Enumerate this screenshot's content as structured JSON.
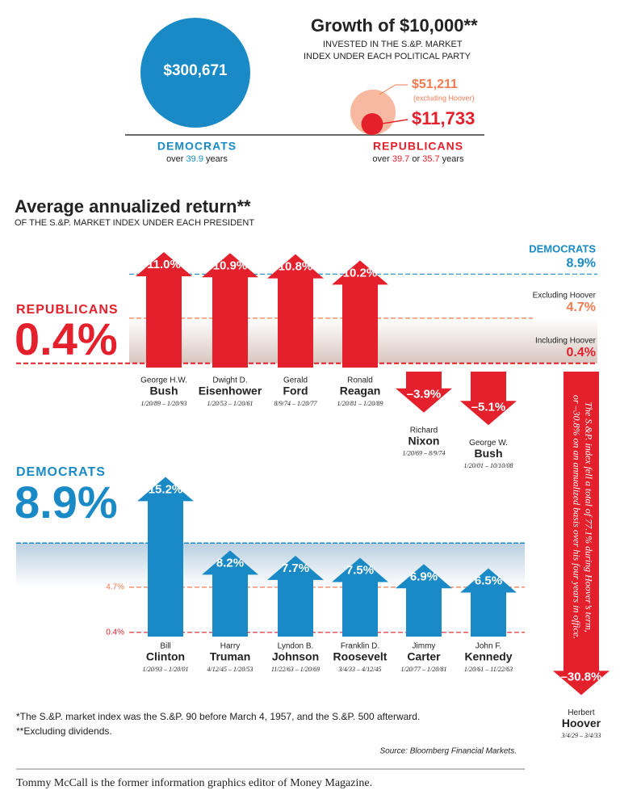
{
  "growth": {
    "title": "Growth of $10,000**",
    "subtitle": [
      "INVESTED IN THE S.&P. MARKET",
      "INDEX UNDER EACH POLITICAL PARTY"
    ],
    "democrats": {
      "name": "DEMOCRATS",
      "value": 300671,
      "value_label": "$300,671",
      "years_line": [
        "over ",
        "39.9",
        " years"
      ],
      "color": "#1a8ac6"
    },
    "republicans": {
      "name": "REPUBLICANS",
      "value": 11733,
      "value_label": "$11,733",
      "years_line": [
        "over ",
        "39.7",
        " or ",
        "35.7",
        " years"
      ],
      "color": "#e3202b",
      "excluding": {
        "value": 51211,
        "value_label": "$51,211",
        "note": "(excluding Hoover)",
        "color": "#f7b9a0"
      }
    }
  },
  "returns": {
    "title": "Average annualized return**",
    "subtitle": "OF THE S.&P. MARKET INDEX UNDER EACH PRESIDENT",
    "republicans": {
      "name": "REPUBLICANS",
      "value": 0.4,
      "value_label": "0.4%",
      "color": "#e3202b",
      "presidents": [
        {
          "first": "George H.W.",
          "last": "Bush",
          "dates": "1/20/89 – 1/20/93",
          "value": 11.0,
          "value_label": "11.0%"
        },
        {
          "first": "Dwight D.",
          "last": "Eisenhower",
          "dates": "1/20/53 – 1/20/61",
          "value": 10.9,
          "value_label": "10.9%"
        },
        {
          "first": "Gerald",
          "last": "Ford",
          "dates": "8/9/74 – 1/20/77",
          "value": 10.8,
          "value_label": "10.8%"
        },
        {
          "first": "Ronald",
          "last": "Reagan",
          "dates": "1/20/81 – 1/20/89",
          "value": 10.2,
          "value_label": "10.2%"
        },
        {
          "first": "Richard",
          "last": "Nixon",
          "dates": "1/20/69 – 8/9/74",
          "value": -3.9,
          "value_label": "–3.9%"
        },
        {
          "first": "George W.",
          "last": "Bush",
          "dates": "1/20/01 – 10/10/08",
          "value": -5.1,
          "value_label": "–5.1%"
        },
        {
          "first": "Herbert",
          "last": "Hoover",
          "dates": "3/4/29 – 3/4/33",
          "value": -30.8,
          "value_label": "–30.8%"
        }
      ]
    },
    "democrats": {
      "name": "DEMOCRATS",
      "value": 8.9,
      "value_label": "8.9%",
      "color": "#1a8ac6",
      "presidents": [
        {
          "first": "Bill",
          "last": "Clinton",
          "dates": "1/20/93 – 1/20/01",
          "value": 15.2,
          "value_label": "15.2%"
        },
        {
          "first": "Harry",
          "last": "Truman",
          "dates": "4/12/45 – 1/20/53",
          "value": 8.2,
          "value_label": "8.2%"
        },
        {
          "first": "Lyndon B.",
          "last": "Johnson",
          "dates": "11/22/63 – 1/20/69",
          "value": 7.7,
          "value_label": "7.7%"
        },
        {
          "first": "Franklin D.",
          "last": "Roosevelt",
          "dates": "3/4/33 – 4/12/45",
          "value": 7.5,
          "value_label": "7.5%"
        },
        {
          "first": "Jimmy",
          "last": "Carter",
          "dates": "1/20/77 – 1/20/81",
          "value": 6.9,
          "value_label": "6.9%"
        },
        {
          "first": "John F.",
          "last": "Kennedy",
          "dates": "1/20/61 – 11/22/63",
          "value": 6.5,
          "value_label": "6.5%"
        }
      ]
    },
    "top_references": [
      {
        "name": "DEMOCRATS",
        "value": 8.9,
        "label": "8.9%",
        "color": "#1a8ac6"
      },
      {
        "name": "Excluding Hoover",
        "value": 4.7,
        "label": "4.7%",
        "color": "#f07b50"
      },
      {
        "name": "Including Hoover",
        "value": 0.4,
        "label": "0.4%",
        "color": "#e3202b"
      }
    ],
    "bottom_references": [
      {
        "value": 4.7,
        "label": "4.7%",
        "color": "#f07b50"
      },
      {
        "value": 0.4,
        "label": "0.4%",
        "color": "#e3202b"
      }
    ],
    "hoover_note": [
      "The S.&P. index fell  a total of 77.1% during Hoover’s term,",
      "or –30.8% on an annualized basis over his four years in office."
    ]
  },
  "footnotes": [
    "*The S.&P. market index was the S.&P. 90 before March 4, 1957, and the S.&P. 500 afterward.",
    "**Excluding dividends."
  ],
  "source": "Source: Bloomberg Financial Markets.",
  "credit": "Tommy McCall is the former information graphics editor of Money Magazine."
}
